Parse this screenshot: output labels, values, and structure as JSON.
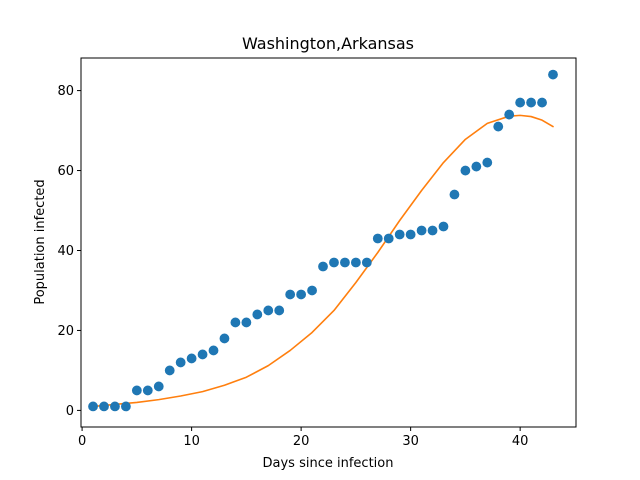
{
  "chart_data": {
    "type": "scatter",
    "title": "Washington,Arkansas",
    "xlabel": "Days since infection",
    "ylabel": "Population infected",
    "xlim": [
      -0.1,
      45.1
    ],
    "ylim": [
      -4.15,
      88.15
    ],
    "xticks": [
      0,
      10,
      20,
      30,
      40
    ],
    "yticks": [
      0,
      20,
      40,
      60,
      80
    ],
    "grid": false,
    "legend": "none",
    "series": [
      {
        "kind": "scatter",
        "color": "#1f77b4",
        "x": [
          1,
          2,
          3,
          4,
          5,
          6,
          7,
          8,
          9,
          10,
          11,
          12,
          13,
          14,
          15,
          16,
          17,
          18,
          19,
          20,
          21,
          22,
          23,
          24,
          25,
          26,
          27,
          28,
          29,
          30,
          31,
          32,
          33,
          34,
          35,
          36,
          37,
          38,
          39,
          40,
          41,
          42,
          43
        ],
        "y": [
          1,
          1,
          1,
          1,
          5,
          5,
          6,
          10,
          12,
          13,
          14,
          15,
          18,
          22,
          22,
          24,
          25,
          25,
          29,
          29,
          30,
          36,
          37,
          37,
          37,
          37,
          43,
          43,
          44,
          44,
          45,
          45,
          46,
          54,
          60,
          61,
          62,
          71,
          74,
          77,
          77,
          77,
          84
        ]
      },
      {
        "kind": "line",
        "color": "#ff7f0e",
        "x": [
          1,
          3,
          5,
          7,
          9,
          11,
          13,
          15,
          17,
          19,
          21,
          23,
          25,
          27,
          29,
          31,
          33,
          35,
          37,
          39,
          40,
          41,
          42,
          43
        ],
        "y": [
          1.0,
          1.5,
          2.0,
          2.7,
          3.6,
          4.7,
          6.3,
          8.3,
          11.2,
          15.0,
          19.5,
          25.0,
          32.0,
          39.5,
          47.5,
          55.0,
          62.0,
          67.8,
          71.8,
          73.6,
          73.8,
          73.5,
          72.6,
          71.0
        ]
      }
    ]
  }
}
